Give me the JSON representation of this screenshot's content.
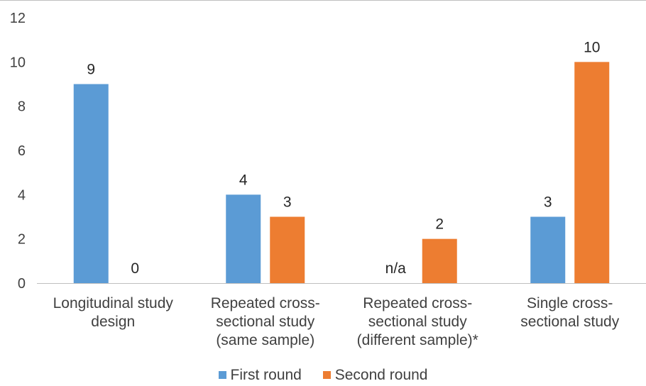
{
  "chart_data": {
    "type": "bar",
    "categories": [
      [
        "Longitudinal study",
        "design"
      ],
      [
        "Repeated cross-",
        "sectional study",
        "(same sample)"
      ],
      [
        "Repeated cross-",
        "sectional study",
        "(different sample)*"
      ],
      [
        "Single cross-",
        "sectional study"
      ]
    ],
    "series": [
      {
        "name": "First round",
        "color": "#5B9BD5",
        "values": [
          9,
          4,
          null,
          3
        ],
        "labels": [
          "9",
          "4",
          "n/a",
          "3"
        ]
      },
      {
        "name": "Second round",
        "color": "#ED7D31",
        "values": [
          0,
          3,
          2,
          10
        ],
        "labels": [
          "0",
          "3",
          "2",
          "10"
        ]
      }
    ],
    "title": "",
    "xlabel": "",
    "ylabel": "",
    "ylim": [
      0,
      12
    ],
    "yticks": [
      0,
      2,
      4,
      6,
      8,
      10,
      12
    ],
    "grid": false,
    "legend_position": "bottom"
  }
}
